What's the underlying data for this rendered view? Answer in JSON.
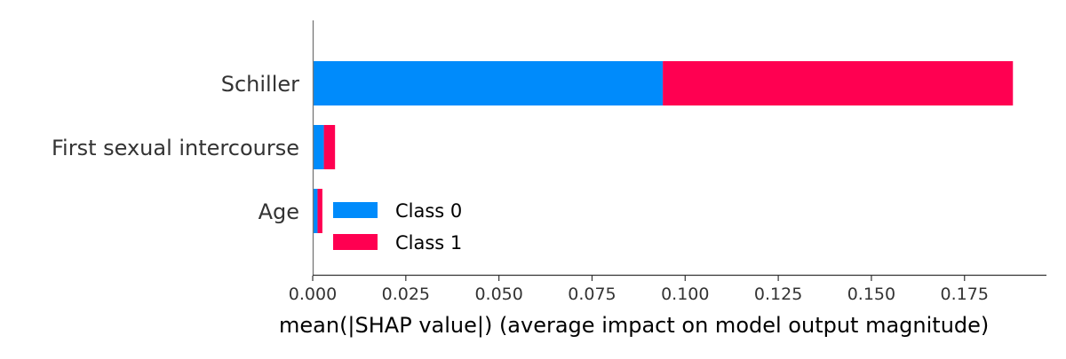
{
  "chart_data": {
    "type": "bar",
    "stacked": true,
    "orientation": "horizontal",
    "categories": [
      "Schiller",
      "First sexual intercourse",
      "Age"
    ],
    "series": [
      {
        "name": "Class 0",
        "color": "#008bfb",
        "values": [
          0.094,
          0.003,
          0.0013
        ]
      },
      {
        "name": "Class 1",
        "color": "#ff0051",
        "values": [
          0.094,
          0.003,
          0.0013
        ]
      }
    ],
    "xlabel": "mean(|SHAP value|) (average impact on model output magnitude)",
    "ylabel": "",
    "xlim": [
      0,
      0.197
    ],
    "xticks": [
      0.0,
      0.025,
      0.05,
      0.075,
      0.1,
      0.125,
      0.15,
      0.175
    ],
    "xtick_labels": [
      "0.000",
      "0.025",
      "0.050",
      "0.075",
      "0.100",
      "0.125",
      "0.150",
      "0.175"
    ],
    "legend_position": "lower-center",
    "grid": false
  }
}
